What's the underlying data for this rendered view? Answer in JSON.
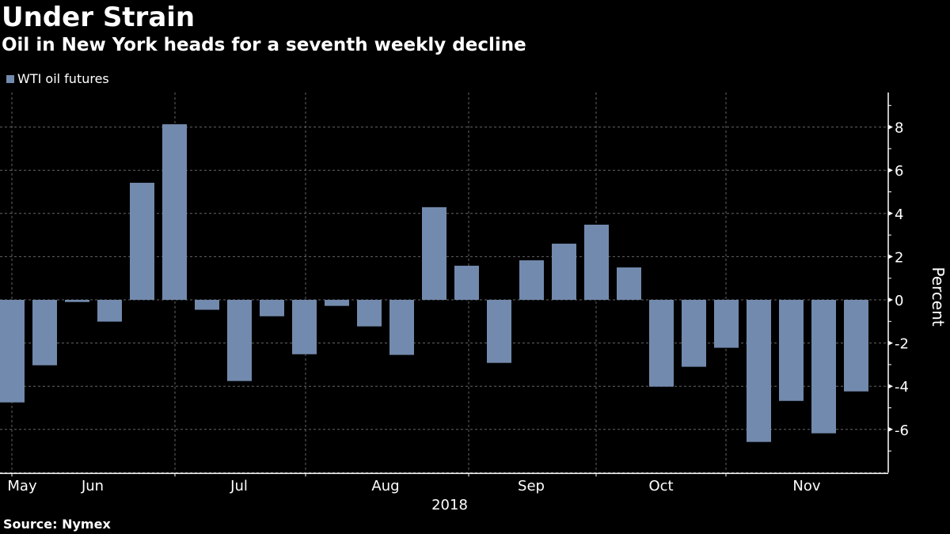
{
  "chart_data": {
    "type": "bar",
    "title": "Under Strain",
    "subtitle": "Oil in New York heads for a seventh weekly decline",
    "legend": [
      {
        "name": "WTI oil futures",
        "color": "#728AAD"
      }
    ],
    "legend_position": "top-left",
    "series": [
      {
        "name": "WTI oil futures",
        "values": [
          -4.75,
          -3.03,
          -0.1,
          -1.01,
          5.42,
          8.13,
          -0.46,
          -3.76,
          -0.76,
          -2.52,
          -0.28,
          -1.23,
          -2.55,
          4.29,
          1.58,
          -2.92,
          1.83,
          2.6,
          3.48,
          1.5,
          -4.02,
          -3.1,
          -2.22,
          -6.58,
          -4.68,
          -6.18,
          -4.24
        ]
      }
    ],
    "x_tick_labels": [
      "May",
      "Jun",
      "Jul",
      "Aug",
      "Sep",
      "Oct",
      "Nov"
    ],
    "x_year_label": "2018",
    "ylabel": "Percent",
    "y_ticks": [
      8,
      6,
      4,
      2,
      0,
      -2,
      -4,
      -6
    ],
    "ylim": [
      -8,
      9.6
    ],
    "grid": true,
    "source": "Source: Nymex",
    "bar_color": "#728AAD"
  }
}
